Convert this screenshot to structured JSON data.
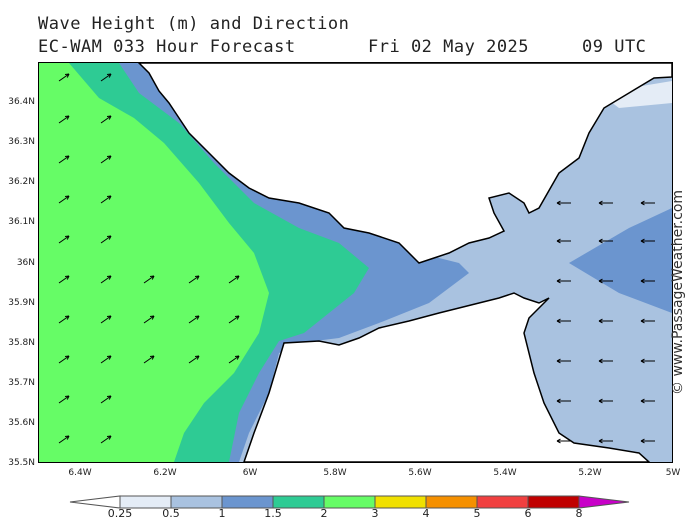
{
  "header": {
    "line1": "Wave Height (m) and Direction",
    "model": "EC-WAM 033 Hour Forecast",
    "date": "Fri 02 May 2025",
    "time": "09 UTC"
  },
  "watermark": "© www.PassageWeather.com",
  "map": {
    "lat_labels": [
      "36.4N",
      "36.3N",
      "36.2N",
      "36.1N",
      "36N",
      "35.9N",
      "35.8N",
      "35.7N",
      "35.6N",
      "35.5N"
    ],
    "lon_labels": [
      "6.4W",
      "6.2W",
      "6W",
      "5.8W",
      "5.6W",
      "5.4W",
      "5.2W",
      "5W"
    ],
    "colors": {
      "land": "#ffffff",
      "lt025": "#e4ecf6",
      "b05_1": "#a9c2e0",
      "b1_15": "#6b95cf",
      "b15_2": "#2ecb94",
      "b2_3": "#66fc66"
    }
  },
  "legend": {
    "labels": [
      "0.25",
      "0.5",
      "1",
      "1.5",
      "2",
      "3",
      "4",
      "5",
      "6",
      "8"
    ],
    "colors": [
      "#e4ecf6",
      "#a9c2e0",
      "#6b95cf",
      "#2ecb94",
      "#66fc66",
      "#f0e000",
      "#f59000",
      "#f04040",
      "#c00000",
      "#c800c8"
    ]
  }
}
